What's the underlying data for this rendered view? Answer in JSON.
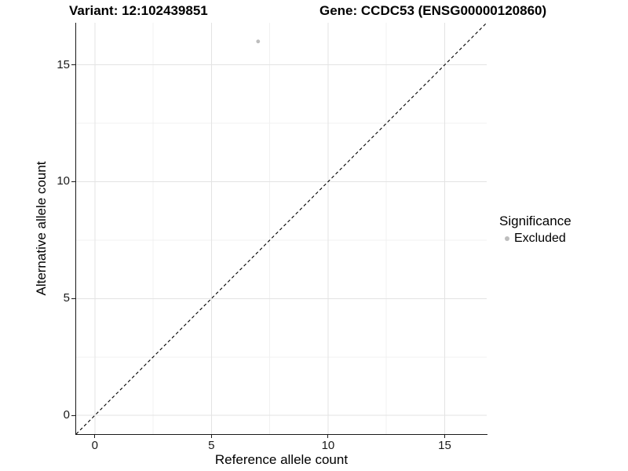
{
  "chart_data": {
    "type": "scatter",
    "titles": [
      "Variant: 12:102439851",
      "Gene: CCDC53 (ENSG00000120860)"
    ],
    "xlabel": "Reference allele count",
    "ylabel": "Alternative allele count",
    "xlim": [
      -0.8,
      16.8
    ],
    "ylim": [
      -0.8,
      16.8
    ],
    "x_ticks": [
      0,
      5,
      10,
      15
    ],
    "y_ticks": [
      0,
      5,
      10,
      15
    ],
    "x_minor_ticks": [
      2.5,
      7.5,
      12.5
    ],
    "y_minor_ticks": [
      2.5,
      7.5,
      12.5
    ],
    "grid": true,
    "points": [
      {
        "x": 7,
        "y": 16,
        "series": "Excluded"
      }
    ],
    "identity_line": {
      "slope": 1,
      "intercept": 0,
      "style": "dashed",
      "color": "#000000"
    },
    "legend": {
      "position": "right",
      "title": "Significance",
      "items": [
        {
          "label": "Excluded",
          "color": "#bdbdbd"
        }
      ]
    },
    "colors": {
      "point": "#bdbdbd",
      "grid_major": "#e3e3e3",
      "grid_minor": "#f1f1f1",
      "axis_line": "#1a1a1a",
      "text": "#000000"
    }
  }
}
